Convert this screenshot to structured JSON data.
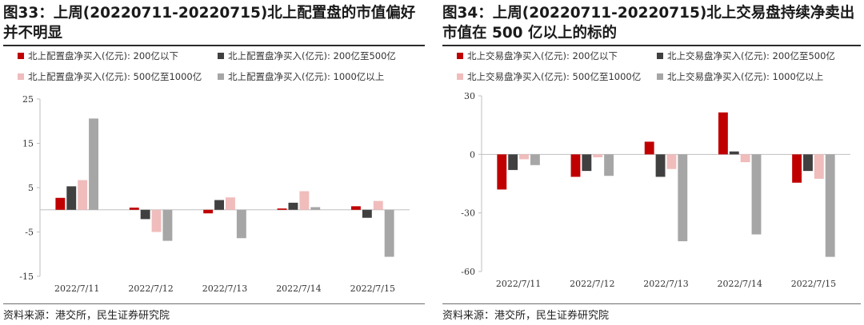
{
  "left": {
    "title": "图33：上周(20220711-20220715)北上配置盘的市值偏好并不明显",
    "source": "资料来源：港交所，民生证券研究院"
  },
  "right": {
    "title": "图34：上周(20220711-20220715)北上交易盘持续净卖出市值在 500 亿以上的标的",
    "source": "资料来源：港交所，民生证券研究院"
  },
  "chart_data": [
    {
      "type": "bar",
      "title": "图33：上周(20220711-20220715)北上配置盘的市值偏好并不明显",
      "categories": [
        "2022/7/11",
        "2022/7/12",
        "2022/7/13",
        "2022/7/14",
        "2022/7/15"
      ],
      "ylim": [
        -15,
        25
      ],
      "yticks": [
        "-15",
        "-5",
        "5",
        "15",
        "25"
      ],
      "ytick_values": [
        -15,
        -5,
        5,
        15,
        25
      ],
      "grid": false,
      "legend_position": "top",
      "series": [
        {
          "name": "北上配置盘净买入(亿元): 200亿以下",
          "color": "#c00000",
          "values": [
            2.7,
            0.5,
            -0.8,
            0.3,
            0.8
          ]
        },
        {
          "name": "北上配置盘净买入(亿元): 200亿至500亿",
          "color": "#404040",
          "values": [
            5.3,
            -2.1,
            2.2,
            1.6,
            -1.8
          ]
        },
        {
          "name": "北上配置盘净买入(亿元): 500亿至1000亿",
          "color": "#f0bcbc",
          "values": [
            6.7,
            -5.0,
            2.8,
            4.2,
            2.0
          ]
        },
        {
          "name": "北上配置盘净买入(亿元): 1000亿以上",
          "color": "#a6a6a6",
          "values": [
            20.6,
            -7.0,
            -6.4,
            0.6,
            -10.6
          ]
        }
      ]
    },
    {
      "type": "bar",
      "title": "图34：上周(20220711-20220715)北上交易盘持续净卖出市值在 500 亿以上的标的",
      "categories": [
        "2022/7/11",
        "2022/7/12",
        "2022/7/13",
        "2022/7/14",
        "2022/7/15"
      ],
      "ylim": [
        -60,
        30
      ],
      "yticks": [
        "-60",
        "-30",
        "0",
        "30"
      ],
      "ytick_values": [
        -60,
        -30,
        0,
        30
      ],
      "grid": false,
      "legend_position": "top",
      "series": [
        {
          "name": "北上交易盘净买入(亿元): 200亿以下",
          "color": "#c00000",
          "values": [
            -18.0,
            -11.5,
            6.5,
            21.5,
            -14.5
          ]
        },
        {
          "name": "北上交易盘净买入(亿元): 200亿至500亿",
          "color": "#404040",
          "values": [
            -8.0,
            -8.5,
            -11.5,
            1.5,
            -8.5
          ]
        },
        {
          "name": "北上交易盘净买入(亿元): 500亿至1000亿",
          "color": "#f0bcbc",
          "values": [
            -2.5,
            -1.5,
            -7.5,
            -4.0,
            -12.5
          ]
        },
        {
          "name": "北上交易盘净买入(亿元): 1000亿以上",
          "color": "#a6a6a6",
          "values": [
            -5.5,
            -11.0,
            -44.5,
            -41.0,
            -52.5
          ]
        }
      ]
    }
  ]
}
